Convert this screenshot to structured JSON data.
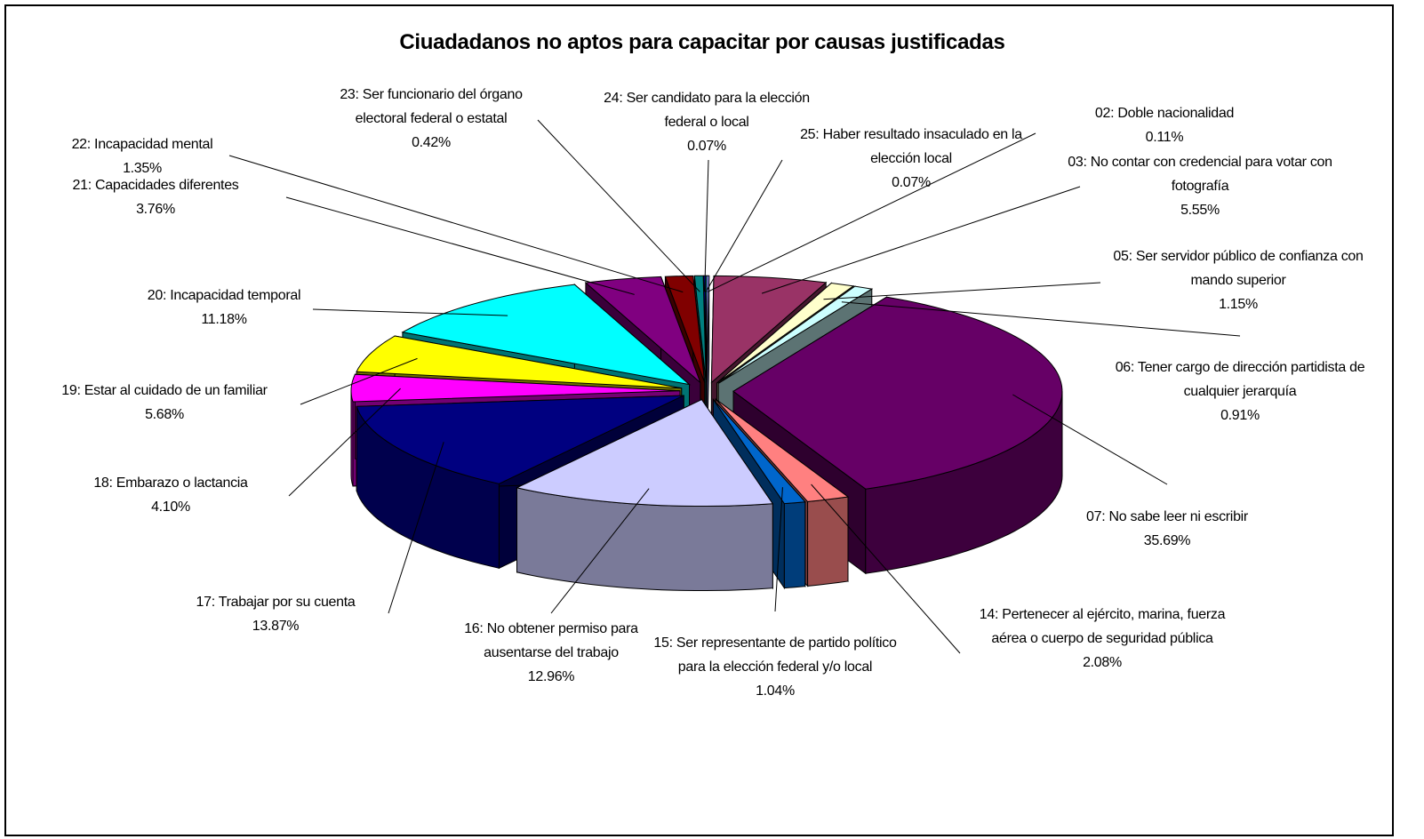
{
  "chart_data": {
    "type": "pie",
    "title": "Ciuadadanos no aptos para capacitar por causas justificadas",
    "categories": [
      "02: Doble nacionalidad",
      "03: No contar con credencial para votar con fotografía",
      "05: Ser servidor público de confianza con mando superior",
      "06: Tener cargo de dirección partidista de cualquier jerarquía",
      "07: No sabe leer ni escribir",
      "14: Pertenecer al ejército, marina, fuerza aérea o cuerpo de seguridad pública",
      "15: Ser representante de partido político para la elección federal y/o local",
      "16: No obtener permiso para ausentarse del trabajo",
      "17: Trabajar por su cuenta",
      "18: Embarazo o lactancia",
      "19: Estar al cuidado de un familiar",
      "20: Incapacidad temporal",
      "21: Capacidades diferentes",
      "22: Incapacidad mental",
      "23: Ser funcionario del órgano electoral federal o estatal",
      "24: Ser candidato para la elección federal o local",
      "25: Haber resultado insaculado en la elección local"
    ],
    "values": [
      0.11,
      5.55,
      1.15,
      0.91,
      35.69,
      2.08,
      1.04,
      12.96,
      13.87,
      4.1,
      5.68,
      11.18,
      3.76,
      1.35,
      0.42,
      0.07,
      0.07
    ],
    "value_labels": [
      "0.11%",
      "5.55%",
      "1.15%",
      "0.91%",
      "35.69%",
      "2.08%",
      "1.04%",
      "12.96%",
      "13.87%",
      "4.10%",
      "5.68%",
      "11.18%",
      "3.76%",
      "1.35%",
      "0.42%",
      "0.07%",
      "0.07%"
    ],
    "colors": [
      "#9999FF",
      "#993366",
      "#FFFFCC",
      "#CCFFFF",
      "#660066",
      "#FF8080",
      "#0066CC",
      "#CCCCFF",
      "#000080",
      "#FF00FF",
      "#FFFF00",
      "#00FFFF",
      "#800080",
      "#800000",
      "#008080",
      "#0000FF",
      "#00CCFF"
    ]
  }
}
